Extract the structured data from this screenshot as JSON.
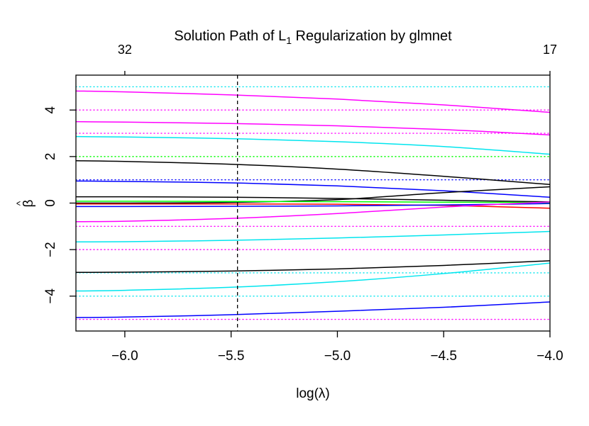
{
  "chart_data": {
    "type": "line",
    "title_main": "Solution Path of L",
    "title_sub": "1",
    "title_rest": " Regularization by glmnet",
    "xlabel": "log(λ)",
    "ylabel_hat": "^",
    "ylabel": "β",
    "xlim": [
      -6.23,
      -4.0
    ],
    "ylim": [
      -5.5,
      5.5
    ],
    "x_ticks": [
      -6.0,
      -5.5,
      -5.0,
      -4.5,
      -4.0
    ],
    "x_tick_labels": [
      "−6.0",
      "−5.5",
      "−5.0",
      "−4.5",
      "−4.0"
    ],
    "y_ticks": [
      -4,
      -2,
      0,
      2,
      4
    ],
    "y_tick_labels": [
      "−4",
      "−2",
      "0",
      "2",
      "4"
    ],
    "top_ticks": [
      -6.0,
      -4.0
    ],
    "top_tick_labels": [
      "32",
      "17"
    ],
    "selected_log_lambda": -5.47,
    "true_coefficients": [
      {
        "value": 5,
        "color": "#00e5ee"
      },
      {
        "value": 4,
        "color": "#ff00ff"
      },
      {
        "value": 3,
        "color": "#ff00ff"
      },
      {
        "value": 2,
        "color": "#00ff00"
      },
      {
        "value": 1,
        "color": "#0000ff"
      },
      {
        "value": -1,
        "color": "#ff00ff"
      },
      {
        "value": -2,
        "color": "#ff00ff"
      },
      {
        "value": -3,
        "color": "#00e5ee"
      },
      {
        "value": -4,
        "color": "#00e5ee"
      },
      {
        "value": -5,
        "color": "#ff00ff"
      }
    ],
    "x": [
      -6.23,
      -6.0,
      -5.5,
      -5.0,
      -4.5,
      -4.0
    ],
    "series": [
      {
        "color": "#ff00ff",
        "values": [
          4.82,
          4.78,
          4.65,
          4.47,
          4.22,
          3.9
        ]
      },
      {
        "color": "#ff00ff",
        "values": [
          3.5,
          3.48,
          3.42,
          3.32,
          3.16,
          2.93
        ]
      },
      {
        "color": "#00e5ee",
        "values": [
          2.86,
          2.84,
          2.77,
          2.64,
          2.43,
          2.1
        ]
      },
      {
        "color": "#000000",
        "values": [
          1.82,
          1.79,
          1.67,
          1.46,
          1.15,
          0.8
        ]
      },
      {
        "color": "#0000ff",
        "values": [
          0.95,
          0.93,
          0.87,
          0.74,
          0.53,
          0.25
        ]
      },
      {
        "color": "#000000",
        "values": [
          0.27,
          0.27,
          0.25,
          0.2,
          0.12,
          0.05
        ]
      },
      {
        "color": "#000000",
        "values": [
          0.0,
          0.0,
          0.03,
          0.15,
          0.45,
          0.7
        ]
      },
      {
        "color": "#ff0000",
        "values": [
          -0.04,
          -0.04,
          -0.04,
          -0.05,
          -0.1,
          -0.22
        ]
      },
      {
        "color": "#00ff00",
        "values": [
          0.08,
          0.08,
          0.07,
          0.06,
          0.04,
          0.02
        ]
      },
      {
        "color": "#0000ff",
        "values": [
          -0.15,
          -0.15,
          -0.14,
          -0.12,
          -0.08,
          -0.02
        ]
      },
      {
        "color": "#ff00ff",
        "values": [
          -0.8,
          -0.78,
          -0.66,
          -0.45,
          -0.17,
          0.05
        ]
      },
      {
        "color": "#00e5ee",
        "values": [
          -1.67,
          -1.66,
          -1.6,
          -1.5,
          -1.37,
          -1.22
        ]
      },
      {
        "color": "#000000",
        "values": [
          -2.98,
          -2.97,
          -2.92,
          -2.83,
          -2.68,
          -2.48
        ]
      },
      {
        "color": "#00e5ee",
        "values": [
          -3.78,
          -3.75,
          -3.62,
          -3.38,
          -3.03,
          -2.58
        ]
      },
      {
        "color": "#0000ff",
        "values": [
          -4.92,
          -4.9,
          -4.8,
          -4.65,
          -4.48,
          -4.25
        ]
      }
    ]
  }
}
